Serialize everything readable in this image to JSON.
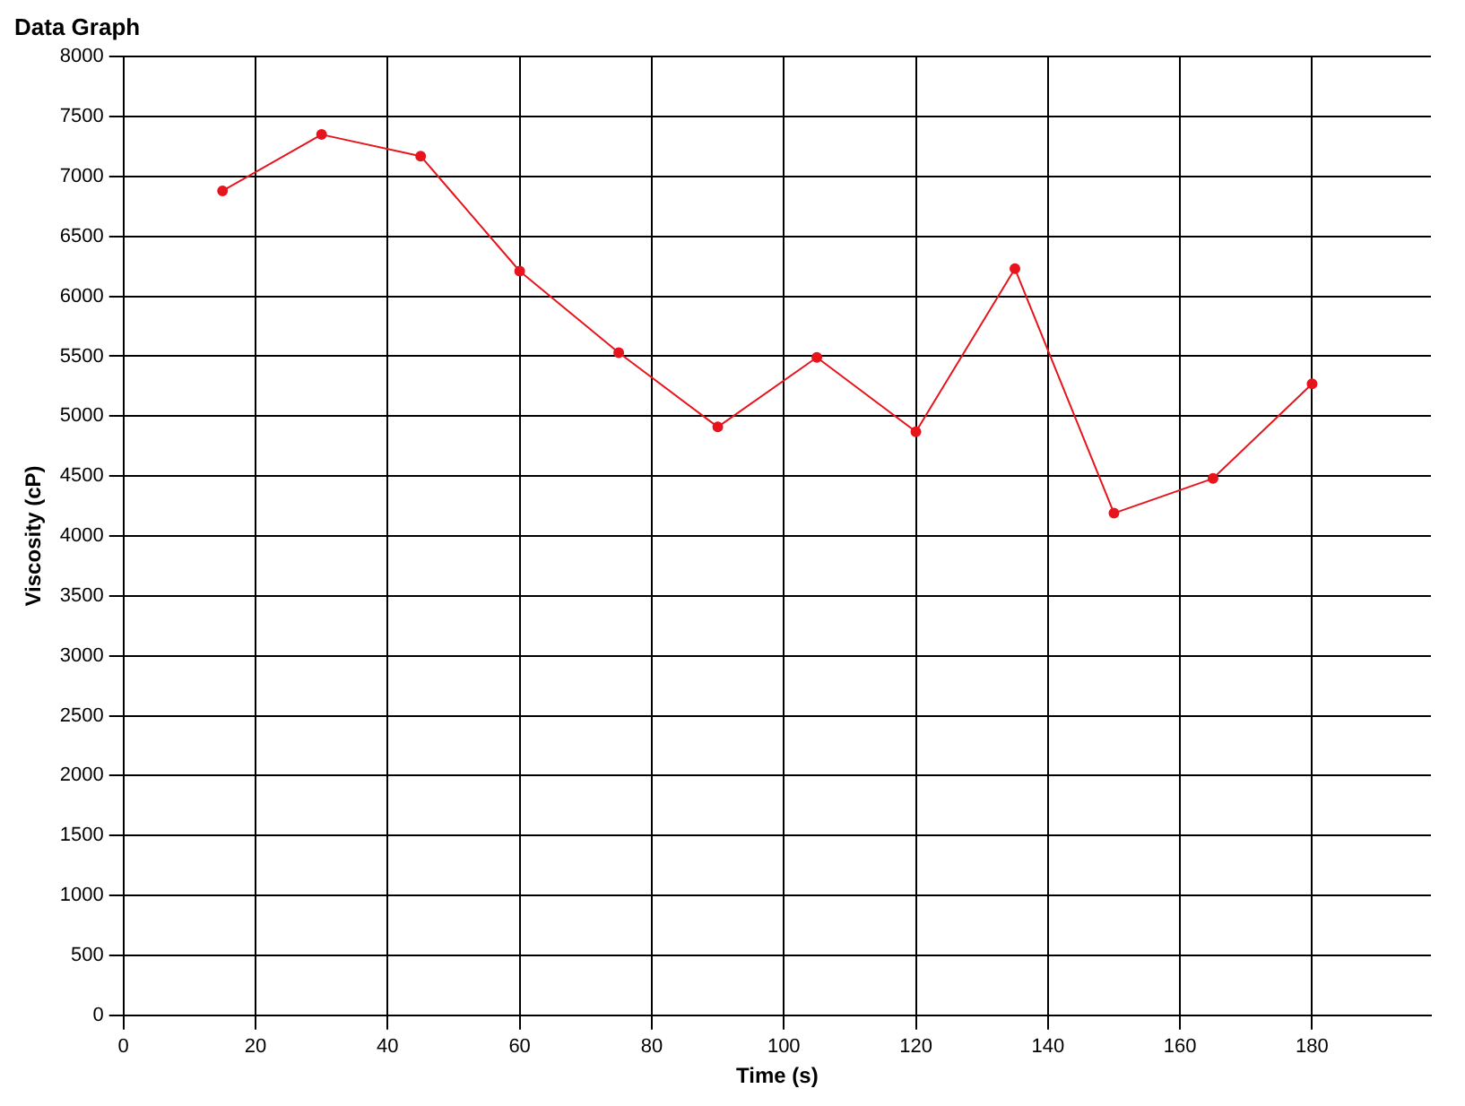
{
  "chart_data": {
    "type": "line",
    "title": "Data Graph",
    "xlabel": "Time (s)",
    "ylabel": "Viscosity (cP)",
    "x": [
      15,
      30,
      45,
      60,
      75,
      90,
      105,
      120,
      135,
      150,
      165,
      180
    ],
    "series": [
      {
        "color": "#e8141c",
        "values": [
          6880,
          7350,
          7170,
          6210,
          5530,
          4910,
          5490,
          4870,
          6230,
          4190,
          4480,
          5270
        ]
      }
    ],
    "xlim": [
      0,
      198
    ],
    "xticks": [
      0,
      20,
      40,
      60,
      80,
      100,
      120,
      140,
      160,
      180
    ],
    "ylim": [
      0,
      8000
    ],
    "yticks": [
      0,
      500,
      1000,
      1500,
      2000,
      2500,
      3000,
      3500,
      4000,
      4500,
      5000,
      5500,
      6000,
      6500,
      7000,
      7500,
      8000
    ],
    "grid": true,
    "legend": false,
    "marker": "circle",
    "line_style": "solid"
  }
}
